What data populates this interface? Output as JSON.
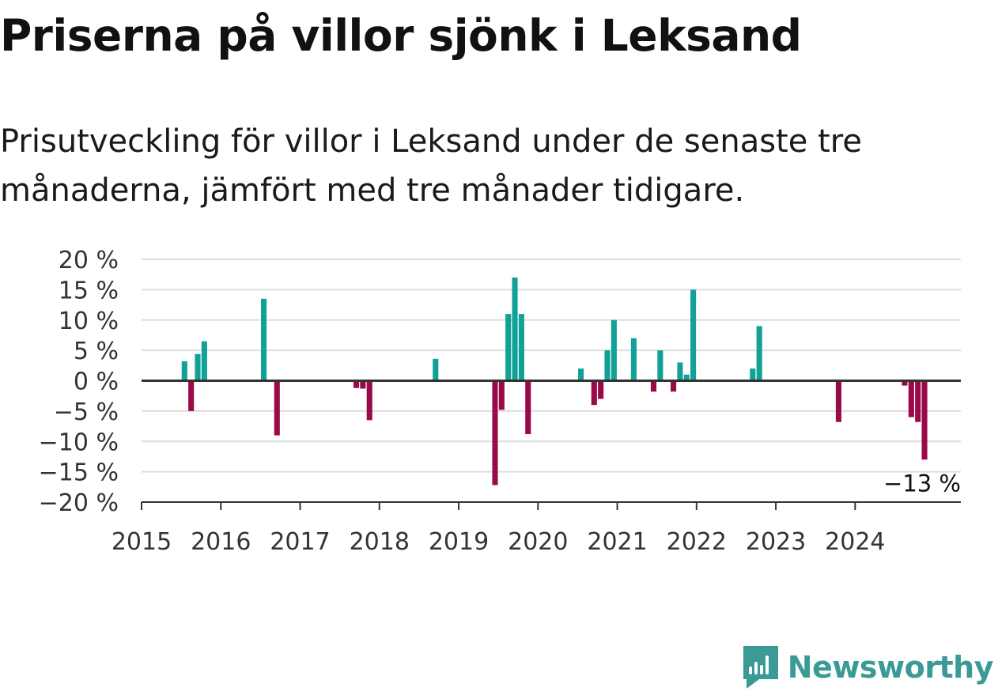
{
  "title": "Priserna på villor sjönk i Leksand",
  "subtitle": "Prisutveckling för villor i Leksand under de senaste tre månaderna, jämfört med tre månader tidigare.",
  "brand": "Newsworthy",
  "colors": {
    "positive": "#12a196",
    "negative": "#9a0a48",
    "grid": "#dddddd",
    "axis": "#333333",
    "brand": "#3a9a96"
  },
  "chart_data": {
    "type": "bar",
    "ylim": [
      -20,
      20
    ],
    "y_ticks": [
      20,
      15,
      10,
      5,
      0,
      -5,
      -10,
      -15,
      -20
    ],
    "y_tick_labels": [
      "20 %",
      "15 %",
      "10 %",
      "5 %",
      "0 %",
      "−5 %",
      "−10 %",
      "−15 %",
      "−20 %"
    ],
    "x_ticks": [
      "2015",
      "2016",
      "2017",
      "2018",
      "2019",
      "2020",
      "2021",
      "2022",
      "2023",
      "2024"
    ],
    "xlim": [
      "2015-01",
      "2025-05"
    ],
    "annotation": {
      "label": "−13 %",
      "x": "2024-11"
    },
    "x": [
      "2015-07",
      "2015-08",
      "2015-09",
      "2015-10",
      "2016-07",
      "2016-09",
      "2017-09",
      "2017-10",
      "2017-11",
      "2018-09",
      "2019-06",
      "2019-07",
      "2019-08",
      "2019-09",
      "2019-10",
      "2019-11",
      "2020-07",
      "2020-09",
      "2020-10",
      "2020-11",
      "2020-12",
      "2021-03",
      "2021-06",
      "2021-07",
      "2021-09",
      "2021-10",
      "2021-11",
      "2021-12",
      "2022-09",
      "2022-10",
      "2023-10",
      "2024-08",
      "2024-09",
      "2024-10",
      "2024-11"
    ],
    "values": [
      3.2,
      -5,
      4.4,
      6.5,
      13.5,
      -9,
      -1.2,
      -1.3,
      -6.5,
      3.6,
      -17.2,
      -4.8,
      11,
      17,
      11,
      -8.8,
      2,
      -4,
      -3,
      5,
      10,
      7,
      -1.8,
      5,
      -1.8,
      3,
      1,
      15,
      2,
      9,
      -6.8,
      -0.8,
      -6,
      -6.8,
      -13
    ]
  }
}
